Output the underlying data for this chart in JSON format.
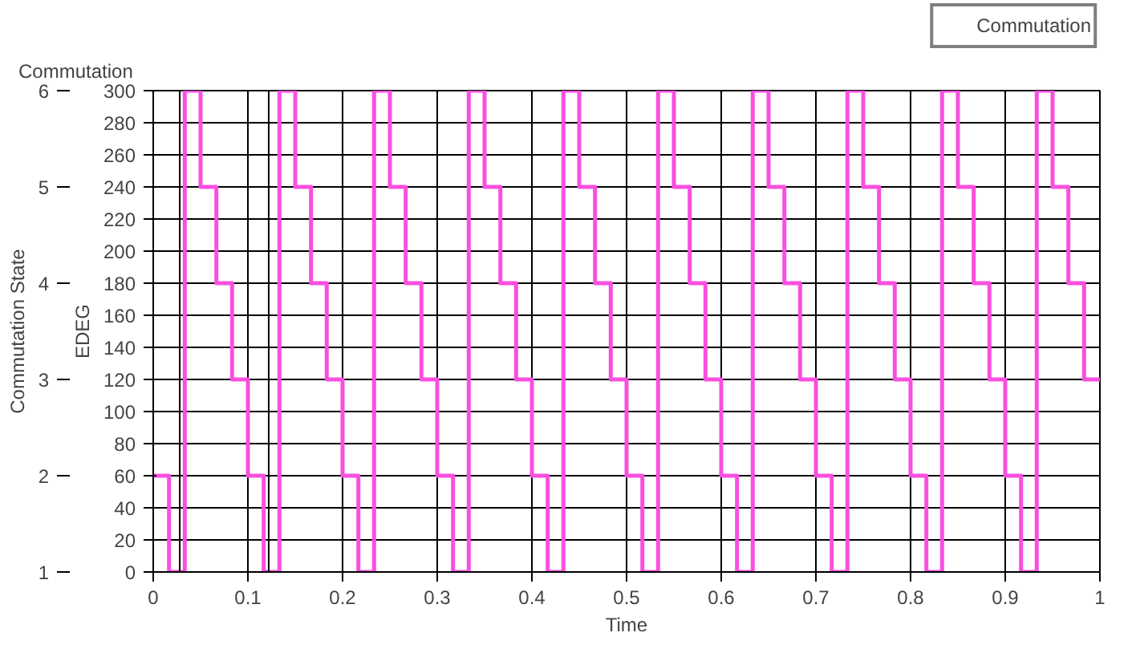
{
  "chart_data": {
    "type": "step",
    "title": "Commutation",
    "xlabel": "Time",
    "ylabel": "EDEG",
    "y2label": "Commutation State",
    "x": [
      0,
      0.0167,
      0.0333,
      0.05,
      0.0667,
      0.0833,
      0.1,
      0.1167,
      0.1333,
      0.15,
      0.1667,
      0.1833,
      0.2,
      0.2167,
      0.2333,
      0.25,
      0.2667,
      0.2833,
      0.3,
      0.3167,
      0.3333,
      0.35,
      0.3667,
      0.3833,
      0.4,
      0.4167,
      0.4333,
      0.45,
      0.4667,
      0.4833,
      0.5,
      0.5167,
      0.5333,
      0.55,
      0.5667,
      0.5833,
      0.6,
      0.6167,
      0.6333,
      0.65,
      0.6667,
      0.6833,
      0.7,
      0.7167,
      0.7333,
      0.75,
      0.7667,
      0.7833,
      0.8,
      0.8167,
      0.8333,
      0.85,
      0.8667,
      0.8833,
      0.9,
      0.9167,
      0.9333,
      0.95,
      0.9667,
      0.9833,
      1
    ],
    "series": [
      {
        "name": "Commutation",
        "color": "#f94fe0",
        "values": [
          60,
          0,
          300,
          240,
          180,
          120,
          60,
          0,
          300,
          240,
          180,
          120,
          60,
          0,
          300,
          240,
          180,
          120,
          60,
          0,
          300,
          240,
          180,
          120,
          60,
          0,
          300,
          240,
          180,
          120,
          60,
          0,
          300,
          240,
          180,
          120,
          60,
          0,
          300,
          240,
          180,
          120,
          60,
          0,
          300,
          240,
          180,
          120,
          60,
          0,
          300,
          240,
          180,
          120,
          60,
          0,
          300,
          240,
          180,
          120,
          120
        ]
      }
    ],
    "xlim": [
      0,
      1
    ],
    "xticks": [
      0,
      0.1,
      0.2,
      0.3,
      0.4,
      0.5,
      0.6,
      0.7,
      0.8,
      0.9,
      1
    ],
    "ylim": [
      0,
      300
    ],
    "yticks": [
      0,
      20,
      40,
      60,
      80,
      100,
      120,
      140,
      160,
      180,
      200,
      220,
      240,
      260,
      280,
      300
    ],
    "y2lim": [
      1,
      6
    ],
    "y2ticks": [
      1,
      2,
      3,
      4,
      5,
      6
    ],
    "ref_lines": [
      {
        "axis": "x",
        "value": 0.028,
        "color": "#000000"
      },
      {
        "axis": "x",
        "value": 0.122,
        "color": "#000000"
      }
    ],
    "grid": true,
    "legend": "top right",
    "line_style": "solid"
  }
}
